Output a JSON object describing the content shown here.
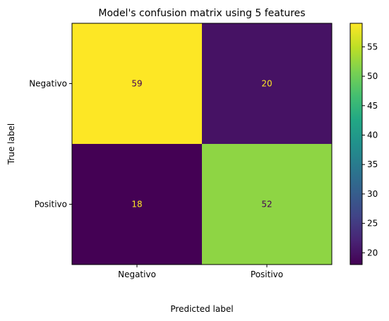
{
  "chart_data": {
    "type": "heatmap",
    "title": "Model's confusion matrix using 5 features",
    "xlabel": "Predicted label",
    "ylabel": "True label",
    "x_categories": [
      "Negativo",
      "Positivo"
    ],
    "y_categories": [
      "Negativo",
      "Positivo"
    ],
    "values": [
      [
        59,
        20
      ],
      [
        18,
        52
      ]
    ],
    "colormap": "viridis",
    "colorbar": {
      "range": [
        18,
        59
      ],
      "ticks": [
        20,
        25,
        30,
        35,
        40,
        45,
        50,
        55
      ]
    },
    "grid": false
  }
}
